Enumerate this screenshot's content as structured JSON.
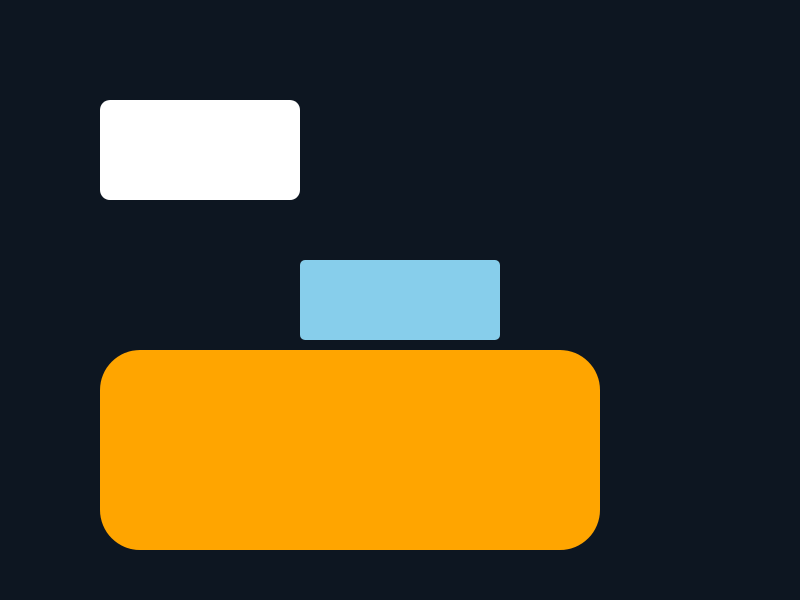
{
  "canvas": {
    "background_color": "#0d1621"
  },
  "blocks": [
    {
      "name": "white-rectangle",
      "color": "#ffffff"
    },
    {
      "name": "light-blue-rectangle",
      "color": "#87ceeb"
    },
    {
      "name": "orange-rectangle",
      "color": "#ffa500"
    }
  ]
}
